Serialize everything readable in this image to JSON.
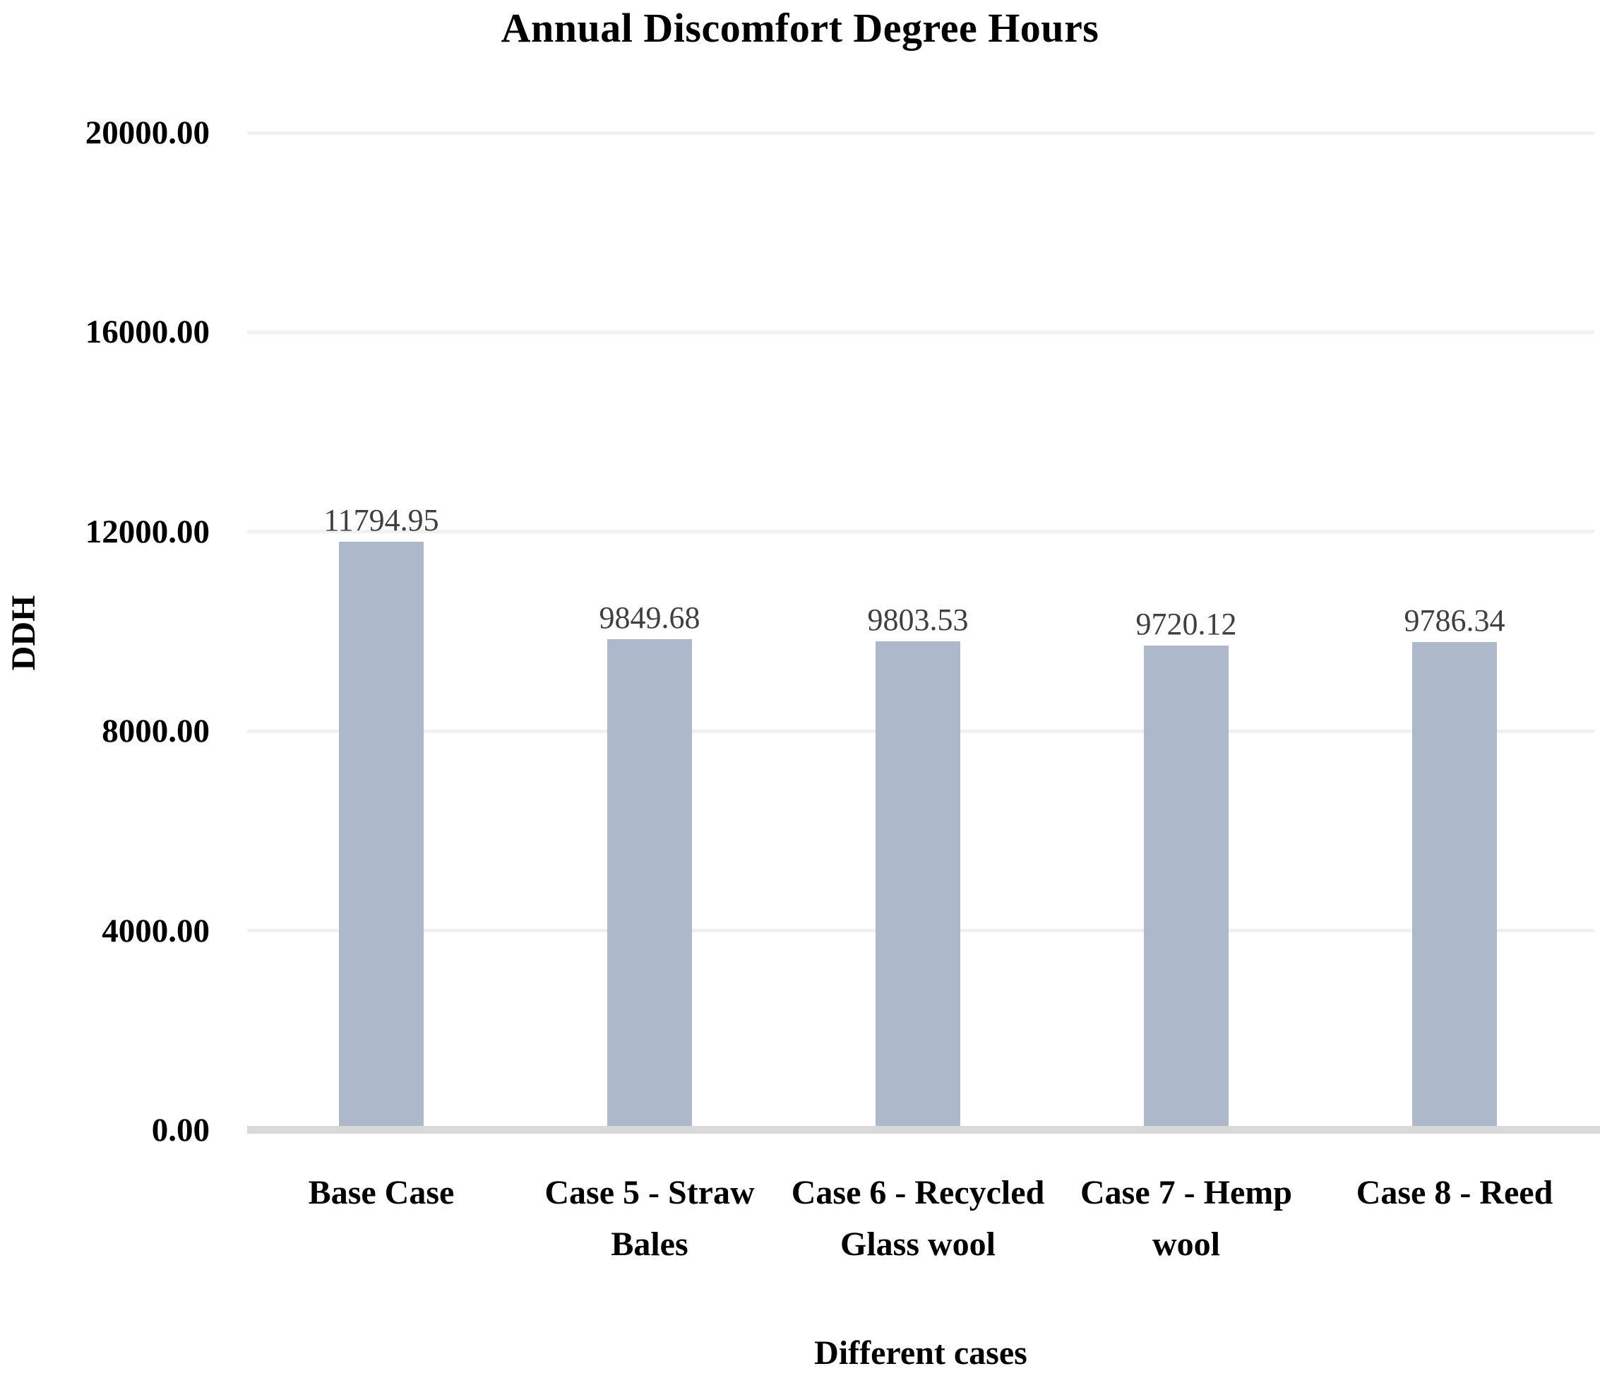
{
  "chart_data": {
    "type": "bar",
    "title": "Annual Discomfort Degree Hours",
    "xlabel": "Different cases",
    "ylabel": "DDH",
    "categories": [
      "Base Case",
      "Case 5 - Straw Bales",
      "Case 6 - Recycled Glass wool",
      "Case 7 - Hemp wool",
      "Case 8 - Reed"
    ],
    "values": [
      11794.95,
      9849.68,
      9803.53,
      9720.12,
      9786.34
    ],
    "value_labels": [
      "11794.95",
      "9849.68",
      "9803.53",
      "9720.12",
      "9786.34"
    ],
    "ylim": [
      0,
      20000
    ],
    "ytick_interval": 4000,
    "ytick_labels": [
      "0.00",
      "4000.00",
      "8000.00",
      "12000.00",
      "16000.00",
      "20000.00"
    ],
    "grid": true,
    "legend": false,
    "colors": {
      "bar": "#adb9ca",
      "gridline": "#f1f1f1",
      "axis_line": "#d9d9d9",
      "value_label": "#404040",
      "text": "#000000",
      "background": "#ffffff"
    }
  }
}
